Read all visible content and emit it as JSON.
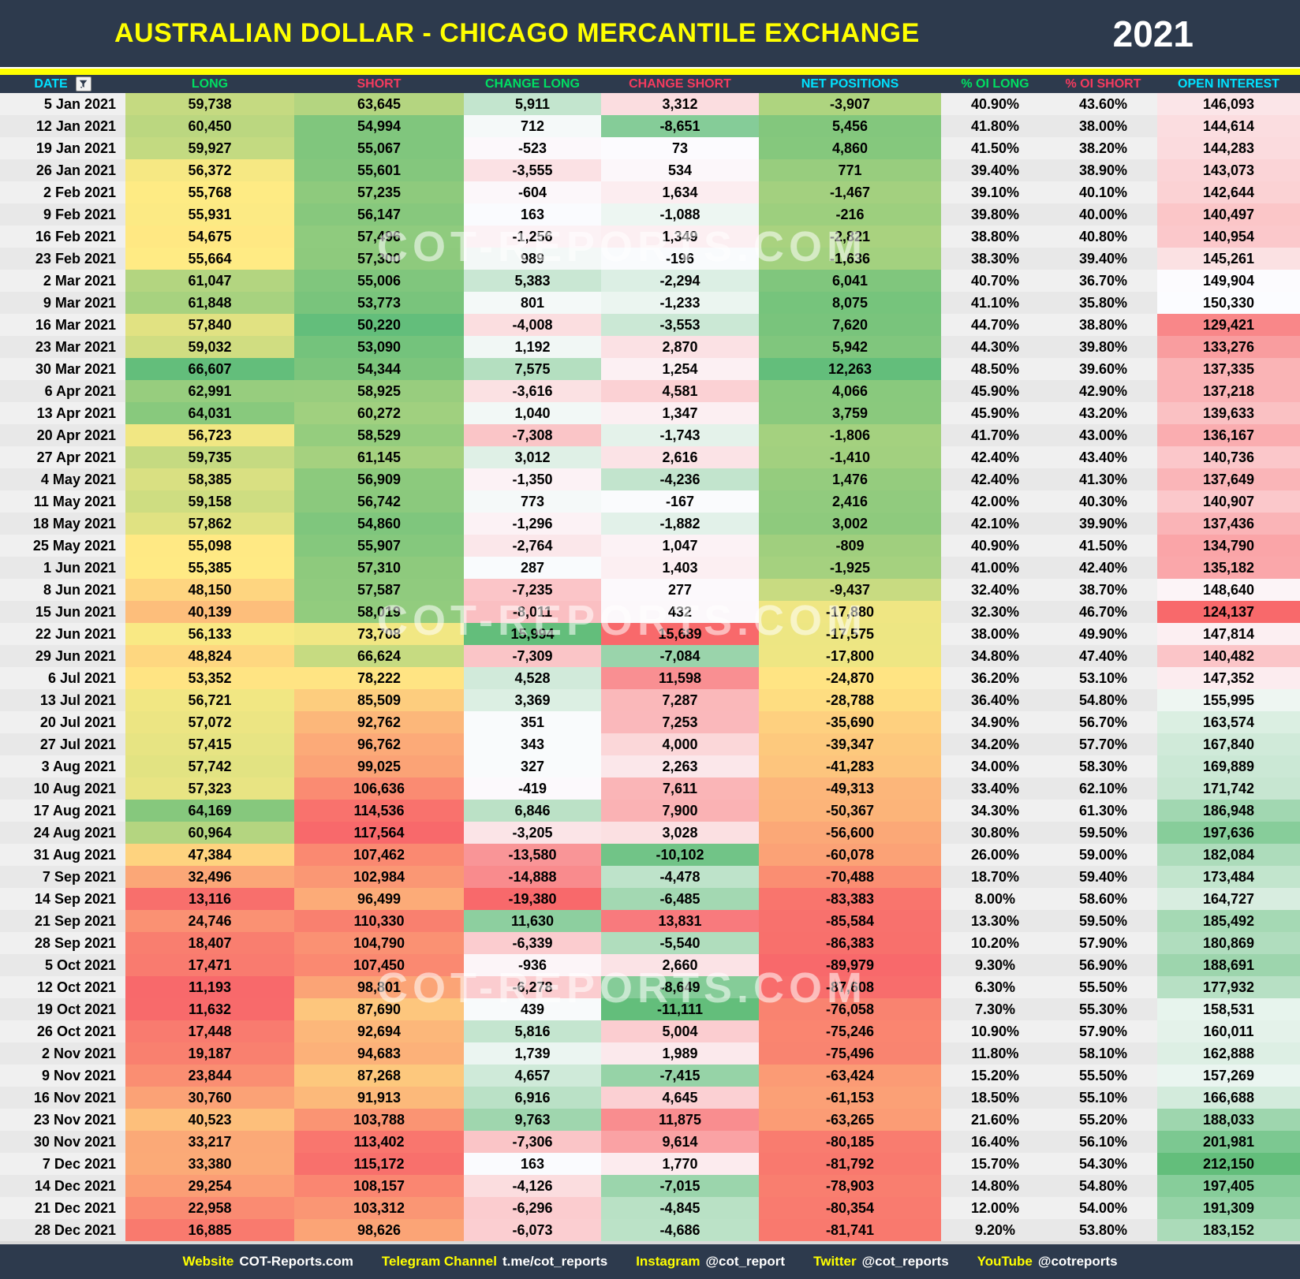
{
  "header": {
    "title": "AUSTRALIAN DOLLAR - CHICAGO MERCANTILE EXCHANGE",
    "year": "2021"
  },
  "watermark": {
    "text": "COT-REPORTS.COM"
  },
  "colors": {
    "header_bg": "#2d3a4d",
    "accent_yellow": "#ffff00",
    "header_cyan": "#00e1ff",
    "header_green": "#00df62",
    "header_pink": "#f43a5e",
    "scale_red": "#f8696b",
    "scale_yellow": "#ffeb84",
    "scale_green": "#63be7b",
    "scale_white": "#fcfcff",
    "row_gray_light": "#f0f0f0",
    "row_gray_dark": "#e8e8e8"
  },
  "chart_data": {
    "type": "table",
    "title": "AUSTRALIAN DOLLAR - CHICAGO MERCANTILE EXCHANGE",
    "year": "2021",
    "columns": [
      {
        "key": "date",
        "label": "DATE",
        "header_color": "#00e1ff",
        "scale": "none"
      },
      {
        "key": "long",
        "label": "LONG",
        "header_color": "#00df62",
        "scale": "red-yellow-green, midpoint median"
      },
      {
        "key": "short",
        "label": "SHORT",
        "header_color": "#f43a5e",
        "scale": "green-yellow-red, midpoint median"
      },
      {
        "key": "change_long",
        "label": "CHANGE LONG",
        "header_color": "#00df62",
        "scale": "red-white-green, midpoint zero"
      },
      {
        "key": "change_short",
        "label": "CHANGE SHORT",
        "header_color": "#f43a5e",
        "scale": "green-white-red, midpoint zero"
      },
      {
        "key": "net_positions",
        "label": "NET POSITIONS",
        "header_color": "#00e1ff",
        "scale": "red-yellow-green, midpoint median"
      },
      {
        "key": "pct_oi_long",
        "label": "% OI LONG",
        "header_color": "#00df62",
        "scale": "none"
      },
      {
        "key": "pct_oi_short",
        "label": "% OI SHORT",
        "header_color": "#f43a5e",
        "scale": "none"
      },
      {
        "key": "open_interest",
        "label": "OPEN INTEREST",
        "header_color": "#00e1ff",
        "scale": "red-white-green, midpoint median"
      }
    ],
    "rows": [
      [
        "5 Jan 2021",
        "59,738",
        "63,645",
        "5,911",
        "3,312",
        "-3,907",
        "40.90%",
        "43.60%",
        "146,093"
      ],
      [
        "12 Jan 2021",
        "60,450",
        "54,994",
        "712",
        "-8,651",
        "5,456",
        "41.80%",
        "38.00%",
        "144,614"
      ],
      [
        "19 Jan 2021",
        "59,927",
        "55,067",
        "-523",
        "73",
        "4,860",
        "41.50%",
        "38.20%",
        "144,283"
      ],
      [
        "26 Jan 2021",
        "56,372",
        "55,601",
        "-3,555",
        "534",
        "771",
        "39.40%",
        "38.90%",
        "143,073"
      ],
      [
        "2 Feb 2021",
        "55,768",
        "57,235",
        "-604",
        "1,634",
        "-1,467",
        "39.10%",
        "40.10%",
        "142,644"
      ],
      [
        "9 Feb 2021",
        "55,931",
        "56,147",
        "163",
        "-1,088",
        "-216",
        "39.80%",
        "40.00%",
        "140,497"
      ],
      [
        "16 Feb 2021",
        "54,675",
        "57,496",
        "-1,256",
        "1,349",
        "-2,821",
        "38.80%",
        "40.80%",
        "140,954"
      ],
      [
        "23 Feb 2021",
        "55,664",
        "57,300",
        "989",
        "-196",
        "-1,636",
        "38.30%",
        "39.40%",
        "145,261"
      ],
      [
        "2 Mar 2021",
        "61,047",
        "55,006",
        "5,383",
        "-2,294",
        "6,041",
        "40.70%",
        "36.70%",
        "149,904"
      ],
      [
        "9 Mar 2021",
        "61,848",
        "53,773",
        "801",
        "-1,233",
        "8,075",
        "41.10%",
        "35.80%",
        "150,330"
      ],
      [
        "16 Mar 2021",
        "57,840",
        "50,220",
        "-4,008",
        "-3,553",
        "7,620",
        "44.70%",
        "38.80%",
        "129,421"
      ],
      [
        "23 Mar 2021",
        "59,032",
        "53,090",
        "1,192",
        "2,870",
        "5,942",
        "44.30%",
        "39.80%",
        "133,276"
      ],
      [
        "30 Mar 2021",
        "66,607",
        "54,344",
        "7,575",
        "1,254",
        "12,263",
        "48.50%",
        "39.60%",
        "137,335"
      ],
      [
        "6 Apr 2021",
        "62,991",
        "58,925",
        "-3,616",
        "4,581",
        "4,066",
        "45.90%",
        "42.90%",
        "137,218"
      ],
      [
        "13 Apr 2021",
        "64,031",
        "60,272",
        "1,040",
        "1,347",
        "3,759",
        "45.90%",
        "43.20%",
        "139,633"
      ],
      [
        "20 Apr 2021",
        "56,723",
        "58,529",
        "-7,308",
        "-1,743",
        "-1,806",
        "41.70%",
        "43.00%",
        "136,167"
      ],
      [
        "27 Apr 2021",
        "59,735",
        "61,145",
        "3,012",
        "2,616",
        "-1,410",
        "42.40%",
        "43.40%",
        "140,736"
      ],
      [
        "4 May 2021",
        "58,385",
        "56,909",
        "-1,350",
        "-4,236",
        "1,476",
        "42.40%",
        "41.30%",
        "137,649"
      ],
      [
        "11 May 2021",
        "59,158",
        "56,742",
        "773",
        "-167",
        "2,416",
        "42.00%",
        "40.30%",
        "140,907"
      ],
      [
        "18 May 2021",
        "57,862",
        "54,860",
        "-1,296",
        "-1,882",
        "3,002",
        "42.10%",
        "39.90%",
        "137,436"
      ],
      [
        "25 May 2021",
        "55,098",
        "55,907",
        "-2,764",
        "1,047",
        "-809",
        "40.90%",
        "41.50%",
        "134,790"
      ],
      [
        "1 Jun 2021",
        "55,385",
        "57,310",
        "287",
        "1,403",
        "-1,925",
        "41.00%",
        "42.40%",
        "135,182"
      ],
      [
        "8 Jun 2021",
        "48,150",
        "57,587",
        "-7,235",
        "277",
        "-9,437",
        "32.40%",
        "38.70%",
        "148,640"
      ],
      [
        "15 Jun 2021",
        "40,139",
        "58,019",
        "-8,011",
        "432",
        "-17,880",
        "32.30%",
        "46.70%",
        "124,137"
      ],
      [
        "22 Jun 2021",
        "56,133",
        "73,708",
        "15,994",
        "15,689",
        "-17,575",
        "38.00%",
        "49.90%",
        "147,814"
      ],
      [
        "29 Jun 2021",
        "48,824",
        "66,624",
        "-7,309",
        "-7,084",
        "-17,800",
        "34.80%",
        "47.40%",
        "140,482"
      ],
      [
        "6 Jul 2021",
        "53,352",
        "78,222",
        "4,528",
        "11,598",
        "-24,870",
        "36.20%",
        "53.10%",
        "147,352"
      ],
      [
        "13 Jul 2021",
        "56,721",
        "85,509",
        "3,369",
        "7,287",
        "-28,788",
        "36.40%",
        "54.80%",
        "155,995"
      ],
      [
        "20 Jul 2021",
        "57,072",
        "92,762",
        "351",
        "7,253",
        "-35,690",
        "34.90%",
        "56.70%",
        "163,574"
      ],
      [
        "27 Jul 2021",
        "57,415",
        "96,762",
        "343",
        "4,000",
        "-39,347",
        "34.20%",
        "57.70%",
        "167,840"
      ],
      [
        "3 Aug 2021",
        "57,742",
        "99,025",
        "327",
        "2,263",
        "-41,283",
        "34.00%",
        "58.30%",
        "169,889"
      ],
      [
        "10 Aug 2021",
        "57,323",
        "106,636",
        "-419",
        "7,611",
        "-49,313",
        "33.40%",
        "62.10%",
        "171,742"
      ],
      [
        "17 Aug 2021",
        "64,169",
        "114,536",
        "6,846",
        "7,900",
        "-50,367",
        "34.30%",
        "61.30%",
        "186,948"
      ],
      [
        "24 Aug 2021",
        "60,964",
        "117,564",
        "-3,205",
        "3,028",
        "-56,600",
        "30.80%",
        "59.50%",
        "197,636"
      ],
      [
        "31 Aug 2021",
        "47,384",
        "107,462",
        "-13,580",
        "-10,102",
        "-60,078",
        "26.00%",
        "59.00%",
        "182,084"
      ],
      [
        "7 Sep 2021",
        "32,496",
        "102,984",
        "-14,888",
        "-4,478",
        "-70,488",
        "18.70%",
        "59.40%",
        "173,484"
      ],
      [
        "14 Sep 2021",
        "13,116",
        "96,499",
        "-19,380",
        "-6,485",
        "-83,383",
        "8.00%",
        "58.60%",
        "164,727"
      ],
      [
        "21 Sep 2021",
        "24,746",
        "110,330",
        "11,630",
        "13,831",
        "-85,584",
        "13.30%",
        "59.50%",
        "185,492"
      ],
      [
        "28 Sep 2021",
        "18,407",
        "104,790",
        "-6,339",
        "-5,540",
        "-86,383",
        "10.20%",
        "57.90%",
        "180,869"
      ],
      [
        "5 Oct 2021",
        "17,471",
        "107,450",
        "-936",
        "2,660",
        "-89,979",
        "9.30%",
        "56.90%",
        "188,691"
      ],
      [
        "12 Oct 2021",
        "11,193",
        "98,801",
        "-6,278",
        "-8,649",
        "-87,608",
        "6.30%",
        "55.50%",
        "177,932"
      ],
      [
        "19 Oct 2021",
        "11,632",
        "87,690",
        "439",
        "-11,111",
        "-76,058",
        "7.30%",
        "55.30%",
        "158,531"
      ],
      [
        "26 Oct 2021",
        "17,448",
        "92,694",
        "5,816",
        "5,004",
        "-75,246",
        "10.90%",
        "57.90%",
        "160,011"
      ],
      [
        "2 Nov 2021",
        "19,187",
        "94,683",
        "1,739",
        "1,989",
        "-75,496",
        "11.80%",
        "58.10%",
        "162,888"
      ],
      [
        "9 Nov 2021",
        "23,844",
        "87,268",
        "4,657",
        "-7,415",
        "-63,424",
        "15.20%",
        "55.50%",
        "157,269"
      ],
      [
        "16 Nov 2021",
        "30,760",
        "91,913",
        "6,916",
        "4,645",
        "-61,153",
        "18.50%",
        "55.10%",
        "166,688"
      ],
      [
        "23 Nov 2021",
        "40,523",
        "103,788",
        "9,763",
        "11,875",
        "-63,265",
        "21.60%",
        "55.20%",
        "188,033"
      ],
      [
        "30 Nov 2021",
        "33,217",
        "113,402",
        "-7,306",
        "9,614",
        "-80,185",
        "16.40%",
        "56.10%",
        "201,981"
      ],
      [
        "7 Dec 2021",
        "33,380",
        "115,172",
        "163",
        "1,770",
        "-81,792",
        "15.70%",
        "54.30%",
        "212,150"
      ],
      [
        "14 Dec 2021",
        "29,254",
        "108,157",
        "-4,126",
        "-7,015",
        "-78,903",
        "14.80%",
        "54.80%",
        "197,405"
      ],
      [
        "21 Dec 2021",
        "22,958",
        "103,312",
        "-6,296",
        "-4,845",
        "-80,354",
        "12.00%",
        "54.00%",
        "191,309"
      ],
      [
        "28 Dec 2021",
        "16,885",
        "98,626",
        "-6,073",
        "-4,686",
        "-81,741",
        "9.20%",
        "53.80%",
        "183,152"
      ]
    ]
  },
  "footer": {
    "items": [
      {
        "label": "Website",
        "value": "COT-Reports.com"
      },
      {
        "label": "Telegram Channel",
        "value": "t.me/cot_reports"
      },
      {
        "label": "Instagram",
        "value": "@cot_report"
      },
      {
        "label": "Twitter",
        "value": "@cot_reports"
      },
      {
        "label": "YouTube",
        "value": "@cotreports"
      }
    ]
  }
}
